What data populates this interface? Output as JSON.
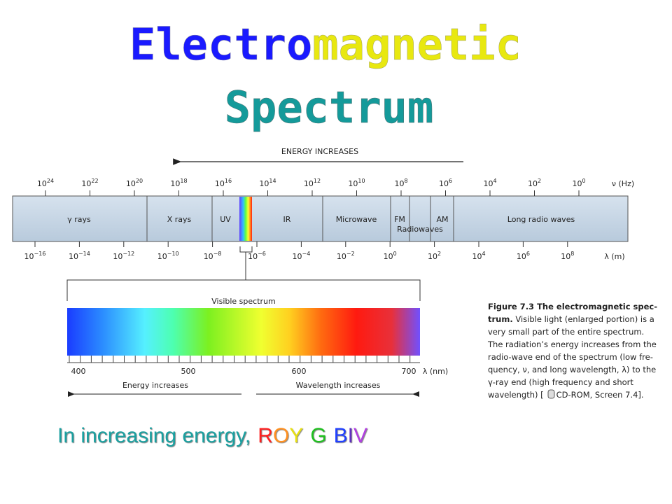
{
  "title": {
    "parts": [
      "Electro",
      "magnetic",
      "Spectrum"
    ]
  },
  "diagram": {
    "energy_label": "ENERGY INCREASES",
    "frequency_axis": {
      "ticks": [
        {
          "base": "10",
          "exp": "24"
        },
        {
          "base": "10",
          "exp": "22"
        },
        {
          "base": "10",
          "exp": "20"
        },
        {
          "base": "10",
          "exp": "18"
        },
        {
          "base": "10",
          "exp": "16"
        },
        {
          "base": "10",
          "exp": "14"
        },
        {
          "base": "10",
          "exp": "12"
        },
        {
          "base": "10",
          "exp": "10"
        },
        {
          "base": "10",
          "exp": "8"
        },
        {
          "base": "10",
          "exp": "6"
        },
        {
          "base": "10",
          "exp": "4"
        },
        {
          "base": "10",
          "exp": "2"
        },
        {
          "base": "10",
          "exp": "0"
        }
      ],
      "unit": "ν (Hz)"
    },
    "regions": [
      "γ rays",
      "X rays",
      "UV",
      "IR",
      "Microwave",
      "FM",
      "AM",
      "Long radio waves"
    ],
    "radiowaves_label": "Radiowaves",
    "wavelength_axis": {
      "ticks": [
        {
          "base": "10",
          "exp": "−16"
        },
        {
          "base": "10",
          "exp": "−14"
        },
        {
          "base": "10",
          "exp": "−12"
        },
        {
          "base": "10",
          "exp": "−10"
        },
        {
          "base": "10",
          "exp": "−8"
        },
        {
          "base": "10",
          "exp": "−6"
        },
        {
          "base": "10",
          "exp": "−4"
        },
        {
          "base": "10",
          "exp": "−2"
        },
        {
          "base": "10",
          "exp": "0"
        },
        {
          "base": "10",
          "exp": "2"
        },
        {
          "base": "10",
          "exp": "4"
        },
        {
          "base": "10",
          "exp": "6"
        },
        {
          "base": "10",
          "exp": "8"
        }
      ],
      "unit": "λ (m)"
    },
    "visible": {
      "label": "Visible spectrum",
      "ticks": [
        "400",
        "500",
        "600",
        "700"
      ],
      "unit": "λ (nm)",
      "left_label": "Energy increases",
      "right_label": "Wavelength increases"
    }
  },
  "caption": {
    "lines": [
      [
        {
          "t": "Figure 7.3   The electromagnetic spec-",
          "b": true
        }
      ],
      [
        {
          "t": "trum.",
          "b": true
        },
        {
          "t": " Visible light (enlarged portion) is a"
        }
      ],
      [
        {
          "t": "very small part of the entire spectrum."
        }
      ],
      [
        {
          "t": "The radiation’s energy increases from the"
        }
      ],
      [
        {
          "t": "radio-wave end of the spectrum (low fre-"
        }
      ],
      [
        {
          "t": "quency, ν, and long wavelength, λ) to the"
        }
      ],
      [
        {
          "t": "γ-ray end (high frequency and short"
        }
      ],
      [
        {
          "t": "wavelength) ["
        },
        {
          "t": "CD-ROM, Screen 7.4].",
          "icon": true
        }
      ]
    ]
  },
  "footer": {
    "text": "In increasing energy,",
    "letters": [
      "R",
      "O",
      "Y",
      "G",
      "B",
      "I",
      "V"
    ]
  }
}
